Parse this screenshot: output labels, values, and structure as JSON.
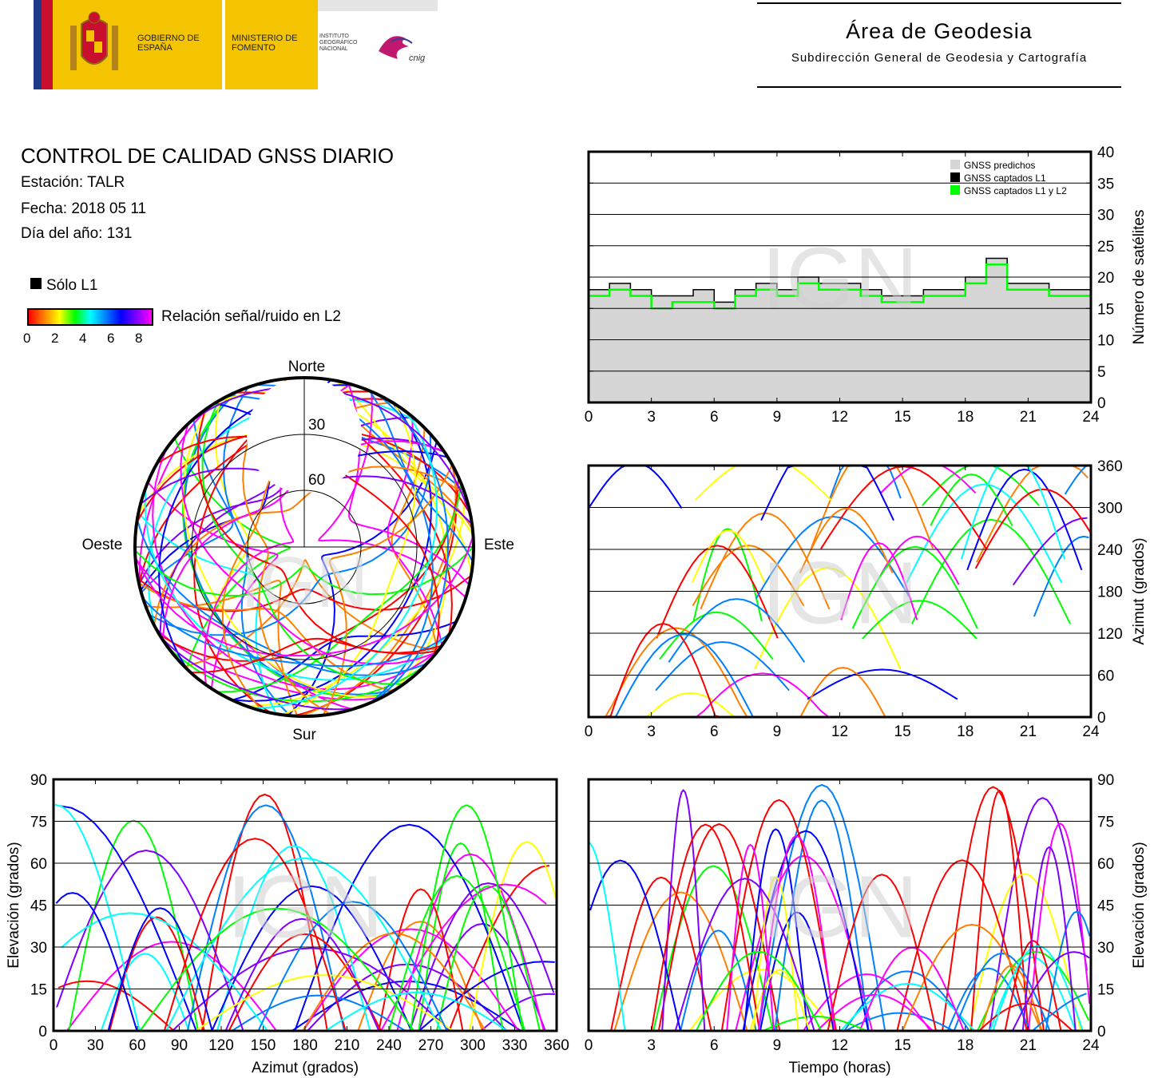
{
  "header": {
    "gov_text": "GOBIERNO DE ESPAÑA",
    "ministry_text": "MINISTERIO DE FOMENTO",
    "institute_text": "INSTITUTO GEOGRÁFICO NACIONAL",
    "cnig_text": "cnig",
    "area_title": "Área de Geodesia",
    "area_subtitle": "Subdirección General de Geodesia y Cartografía",
    "colors": {
      "gov_yellow": "#f4c400",
      "flag_blue": "#1b3b8a",
      "flag_red": "#c8102e",
      "ign_magenta": "#c0186e"
    }
  },
  "report": {
    "title": "CONTROL DE CALIDAD GNSS DIARIO",
    "station": "Estación: TALR",
    "date": "Fecha: 2018 05 11",
    "day_of_year": "Día del año: 131"
  },
  "legend": {
    "l1_only": "Sólo L1",
    "snr_label": "Relación señal/ruido en L2",
    "snr_ticks": [
      "0",
      "2",
      "4",
      "6",
      "8"
    ],
    "snr_colors": [
      "#ff0000",
      "#ff8000",
      "#ffff00",
      "#00ff00",
      "#00ffff",
      "#0080ff",
      "#0000ff",
      "#8000ff",
      "#ff00ff"
    ]
  },
  "watermark": "IGN",
  "chart_data": [
    {
      "type": "polar-skyplot",
      "labels": {
        "north": "Norte",
        "south": "Sur",
        "east": "Este",
        "west": "Oeste"
      },
      "rings": [
        {
          "elevation": 30,
          "label": "30"
        },
        {
          "elevation": 60,
          "label": "60"
        }
      ],
      "coverage": "satellite tracks colored by L2 SNR; empty region to the north above ~30° elevation"
    },
    {
      "type": "area",
      "x_ticks": [
        "0",
        "3",
        "6",
        "9",
        "12",
        "15",
        "18",
        "21",
        "24"
      ],
      "y_ticks": [
        "0",
        "5",
        "10",
        "15",
        "20",
        "25",
        "30",
        "35",
        "40"
      ],
      "xlim": [
        0,
        24
      ],
      "ylim": [
        0,
        40
      ],
      "ylabel": "Número de satélites",
      "grid": "horizontal",
      "legend_position": "top-right",
      "series": [
        {
          "name": "GNSS predichos",
          "color": "#d6d6d6",
          "x": [
            0,
            1,
            2,
            3,
            4,
            5,
            6,
            7,
            8,
            9,
            10,
            11,
            12,
            13,
            14,
            15,
            16,
            17,
            18,
            19,
            20,
            21,
            22,
            23,
            24
          ],
          "values": [
            18,
            19,
            18,
            17,
            17,
            18,
            16,
            18,
            19,
            18,
            20,
            19,
            19,
            18,
            17,
            17,
            18,
            18,
            20,
            23,
            19,
            19,
            18,
            18,
            17
          ]
        },
        {
          "name": "GNSS captados L1",
          "color": "#000000",
          "x": [
            0,
            1,
            2,
            3,
            4,
            5,
            6,
            7,
            8,
            9,
            10,
            11,
            12,
            13,
            14,
            15,
            16,
            17,
            18,
            19,
            20,
            21,
            22,
            23,
            24
          ],
          "values": [
            18,
            19,
            18,
            17,
            17,
            18,
            16,
            18,
            19,
            18,
            20,
            19,
            19,
            18,
            17,
            17,
            18,
            18,
            20,
            23,
            19,
            19,
            18,
            18,
            17
          ]
        },
        {
          "name": "GNSS captados L1 y L2",
          "color": "#00ff00",
          "x": [
            0,
            1,
            2,
            3,
            4,
            5,
            6,
            7,
            8,
            9,
            10,
            11,
            12,
            13,
            14,
            15,
            16,
            17,
            18,
            19,
            20,
            21,
            22,
            23,
            24
          ],
          "values": [
            17,
            18,
            17,
            15,
            16,
            16,
            15,
            17,
            18,
            17,
            19,
            18,
            18,
            17,
            16,
            16,
            17,
            17,
            19,
            22,
            18,
            18,
            17,
            17,
            16
          ]
        }
      ]
    },
    {
      "type": "scatter",
      "x_ticks": [
        "0",
        "3",
        "6",
        "9",
        "12",
        "15",
        "18",
        "21",
        "24"
      ],
      "y_ticks": [
        "0",
        "60",
        "120",
        "180",
        "240",
        "300",
        "360"
      ],
      "xlim": [
        0,
        24
      ],
      "ylim": [
        0,
        360
      ],
      "ylabel": "Azimut (grados)",
      "grid": "horizontal",
      "description": "satellite azimuth tracks vs time"
    },
    {
      "type": "scatter",
      "x_ticks": [
        "0",
        "30",
        "60",
        "90",
        "120",
        "150",
        "180",
        "210",
        "240",
        "270",
        "300",
        "330",
        "360"
      ],
      "y_ticks": [
        "0",
        "15",
        "30",
        "45",
        "60",
        "75",
        "90"
      ],
      "xlim": [
        0,
        360
      ],
      "ylim": [
        0,
        90
      ],
      "xlabel": "Azimut (grados)",
      "ylabel": "Elevación (grados)",
      "grid": "horizontal"
    },
    {
      "type": "scatter",
      "x_ticks": [
        "0",
        "3",
        "6",
        "9",
        "12",
        "15",
        "18",
        "21",
        "24"
      ],
      "y_ticks": [
        "0",
        "15",
        "30",
        "45",
        "60",
        "75",
        "90"
      ],
      "xlim": [
        0,
        24
      ],
      "ylim": [
        0,
        90
      ],
      "xlabel": "Tiempo (horas)",
      "ylabel": "Elevación (grados)",
      "grid": "horizontal"
    }
  ]
}
